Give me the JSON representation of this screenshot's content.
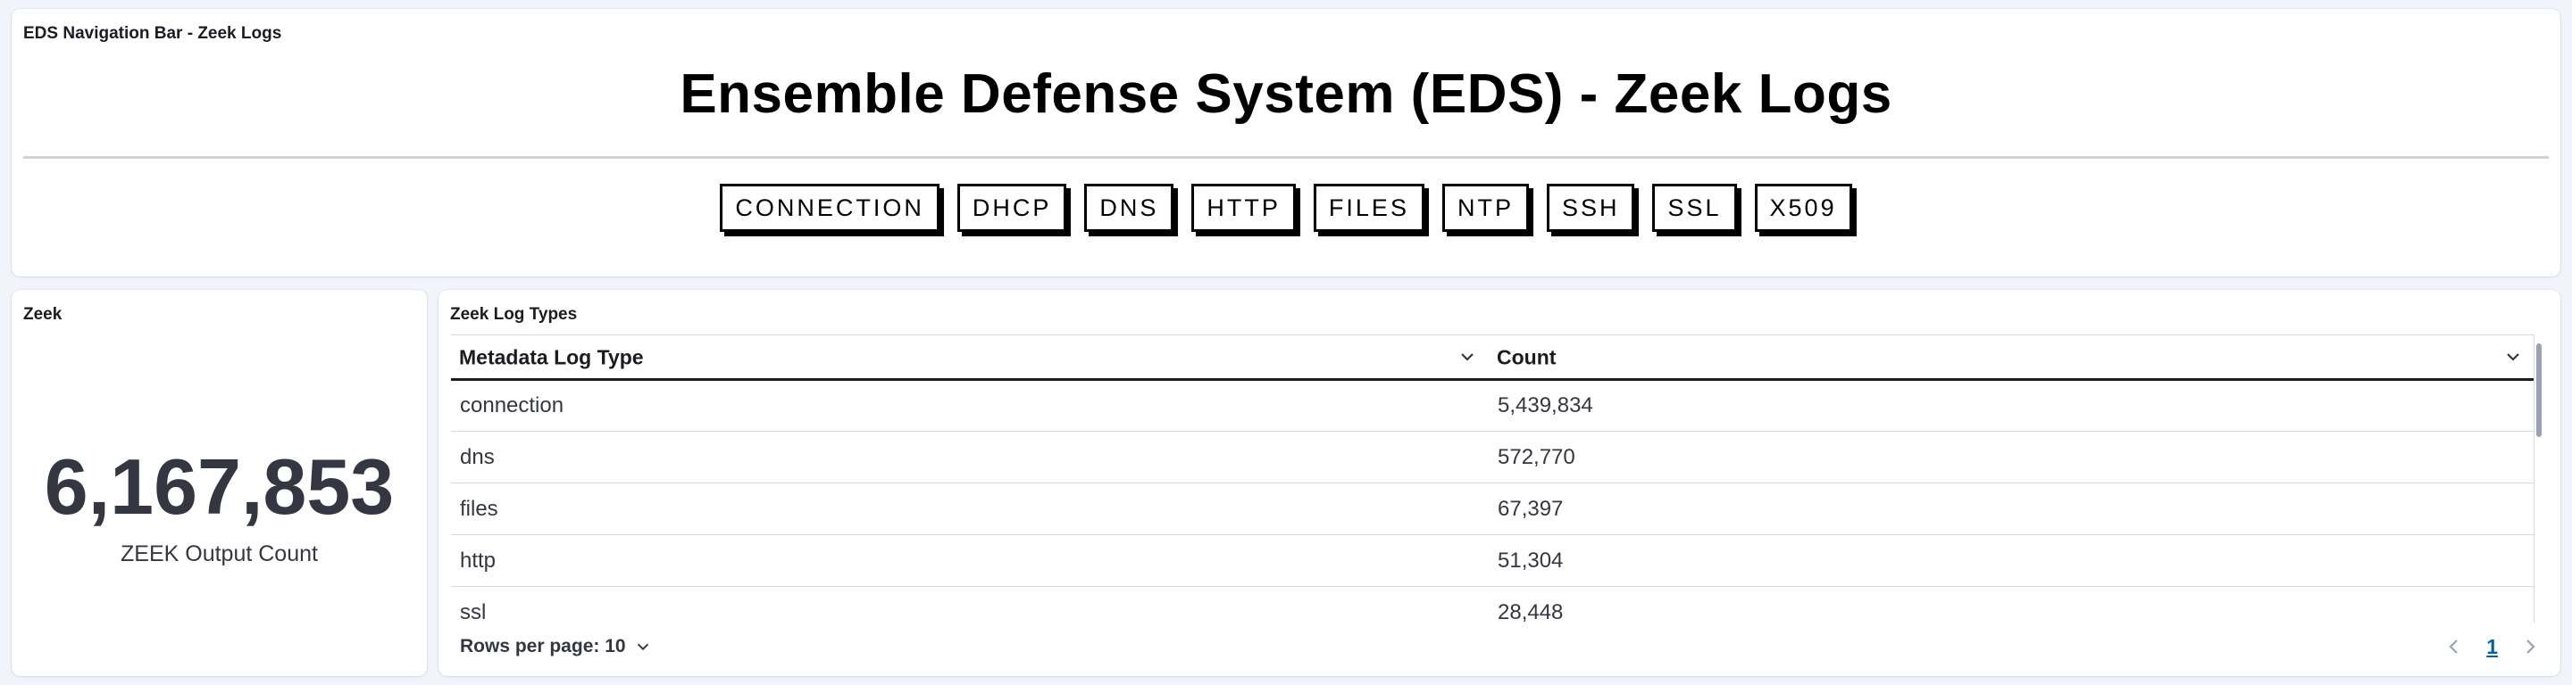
{
  "nav_panel": {
    "title": "EDS Navigation Bar - Zeek Logs",
    "heading": "Ensemble Defense System (EDS) - Zeek Logs",
    "buttons": [
      "CONNECTION",
      "DHCP",
      "DNS",
      "HTTP",
      "FILES",
      "NTP",
      "SSH",
      "SSL",
      "X509"
    ]
  },
  "metric_panel": {
    "title": "Zeek",
    "value": "6,167,853",
    "label": "ZEEK Output Count"
  },
  "table_panel": {
    "title": "Zeek Log Types",
    "columns": [
      "Metadata Log Type",
      "Count"
    ],
    "rows": [
      [
        "connection",
        "5,439,834"
      ],
      [
        "dns",
        "572,770"
      ],
      [
        "files",
        "67,397"
      ],
      [
        "http",
        "51,304"
      ],
      [
        "ssl",
        "28,448"
      ]
    ],
    "rows_per_page": "Rows per page: 10",
    "current_page": "1"
  },
  "icons": {
    "column_sort": "chevron-down-icon",
    "rows_per_page": "chevron-down-icon",
    "prev_page": "chevron-left-icon",
    "next_page": "chevron-right-icon"
  },
  "colors": {
    "background": "#f1f4fa",
    "link": "#0061a6",
    "text_dark": "#343741"
  }
}
